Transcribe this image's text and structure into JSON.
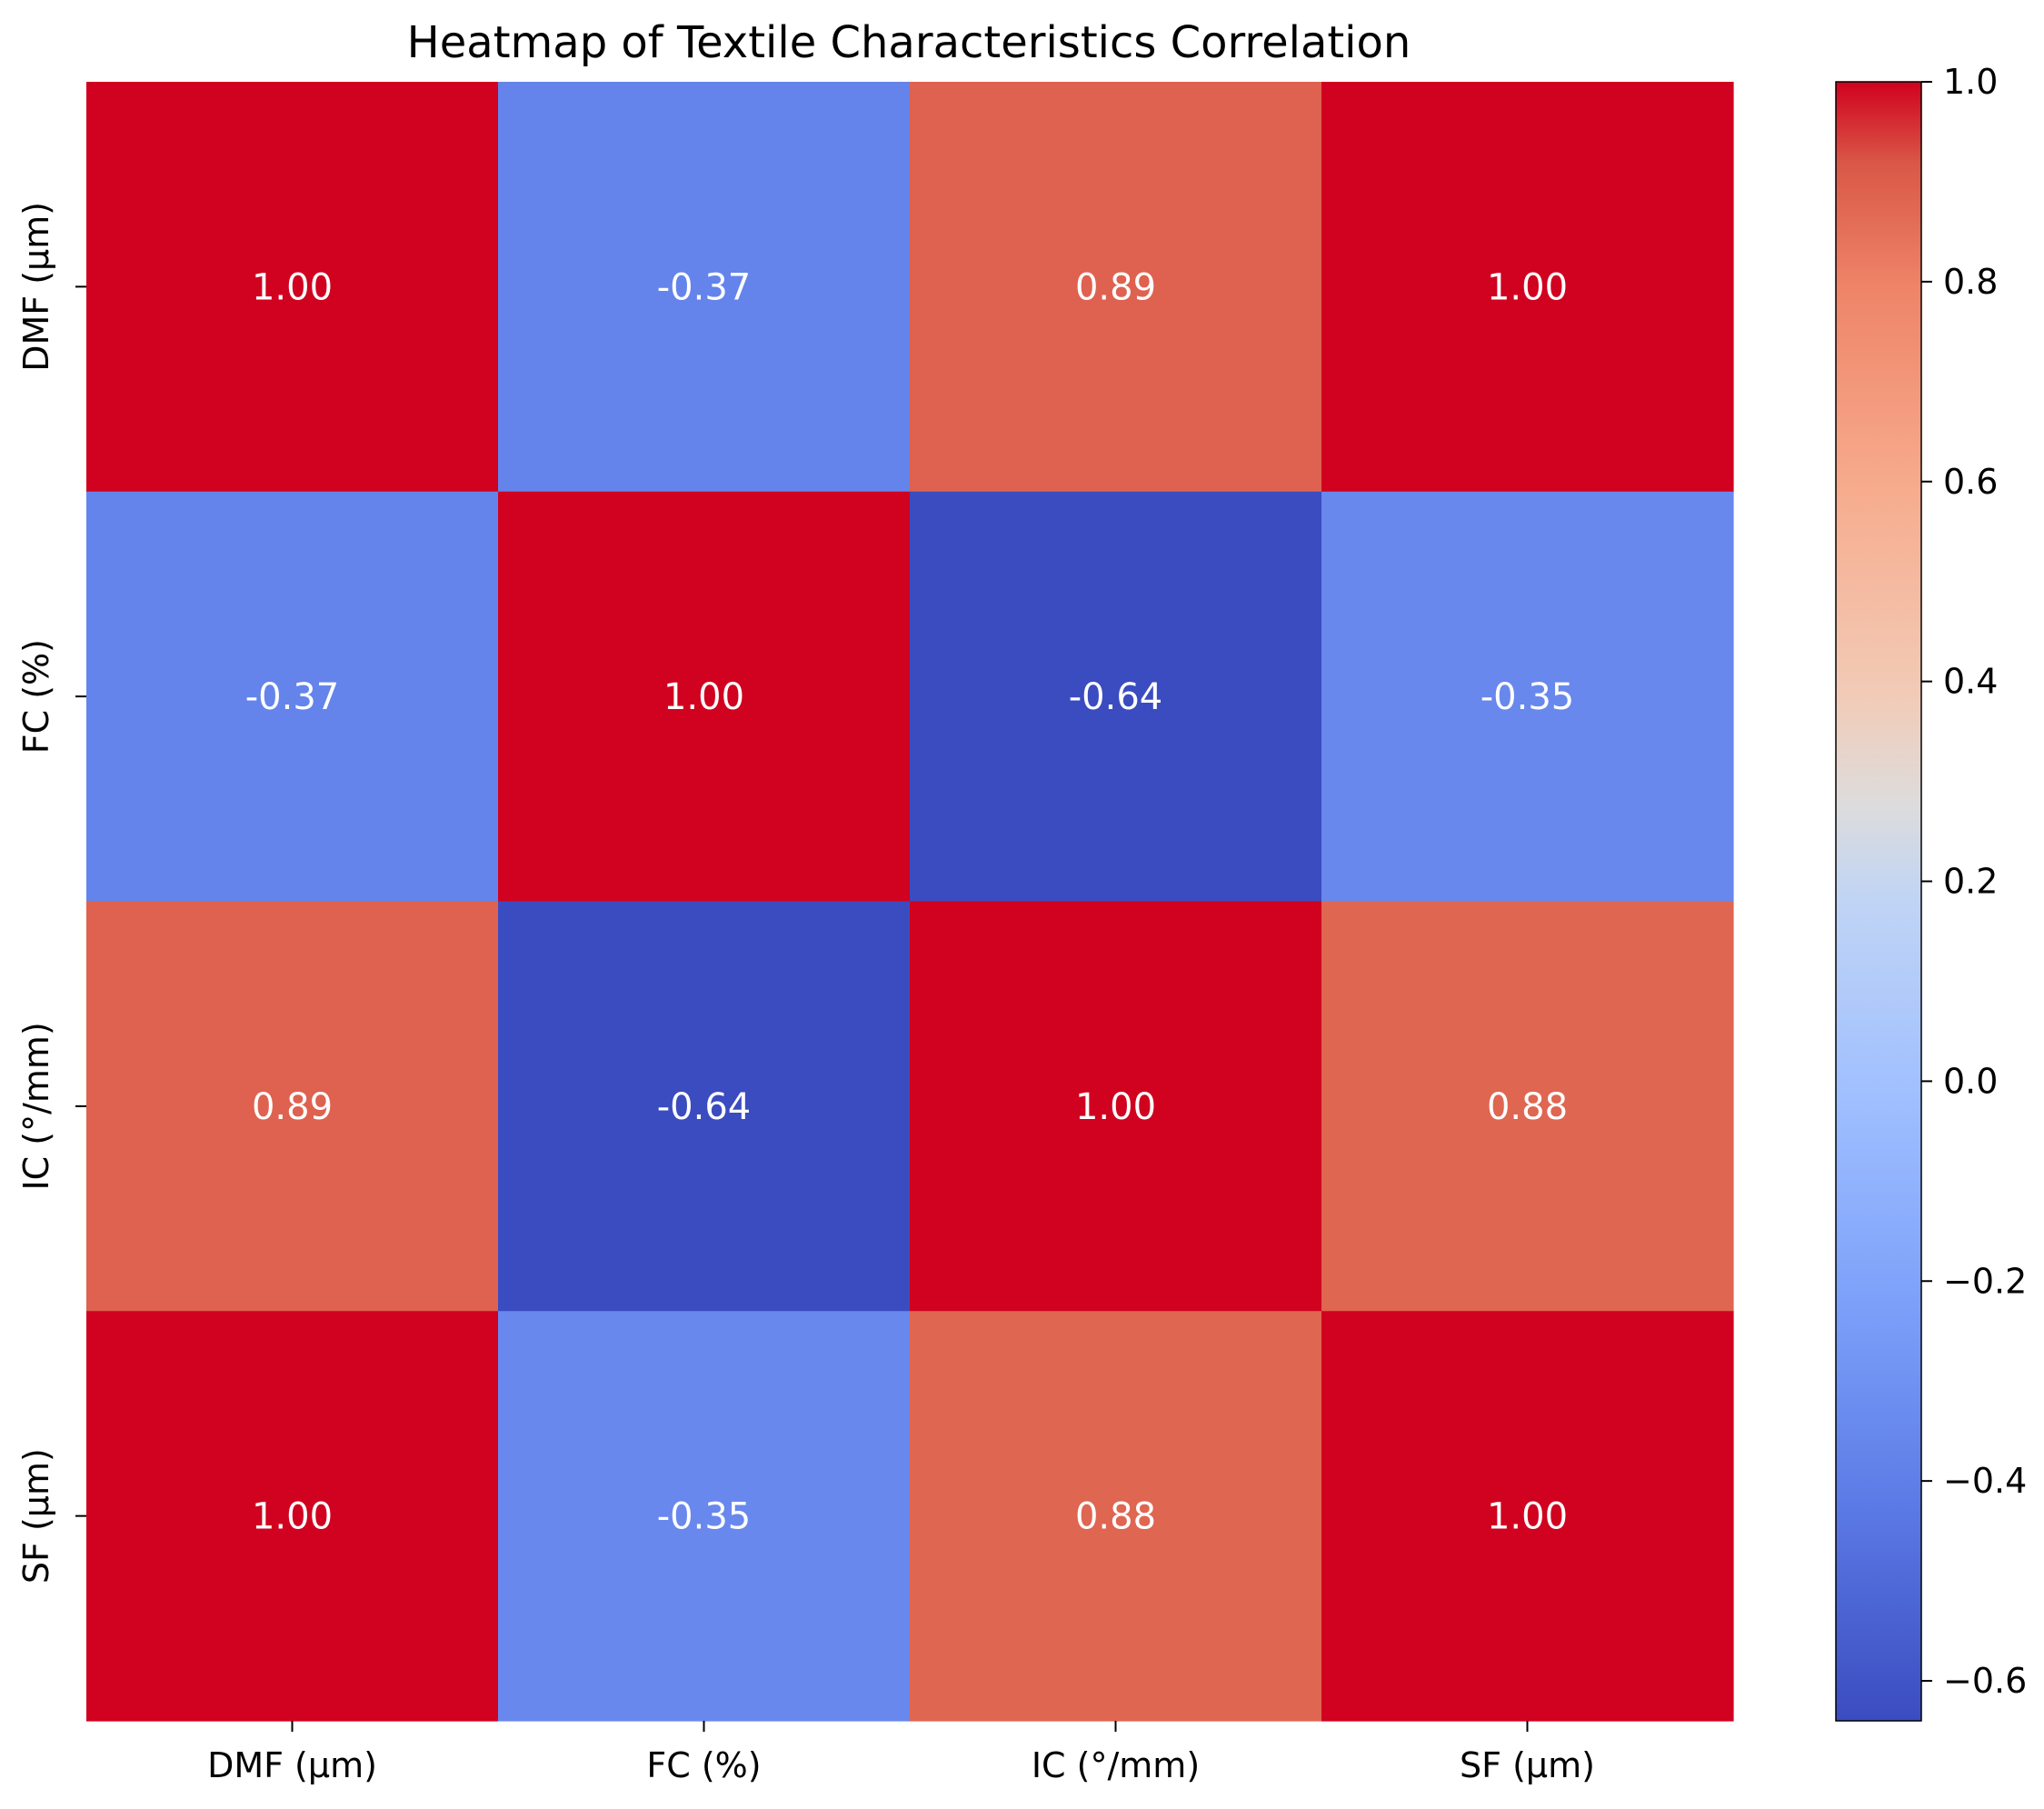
{
  "chart_data": {
    "type": "heatmap",
    "title": "Heatmap of Textile Characteristics Correlation",
    "xlabel": "",
    "ylabel": "",
    "row_labels": [
      "DMF (µm)",
      "FC (%)",
      "IC (°/mm)",
      "SF (µm)"
    ],
    "col_labels": [
      "DMF (µm)",
      "FC (%)",
      "IC (°/mm)",
      "SF (µm)"
    ],
    "values": [
      [
        1.0,
        -0.37,
        0.89,
        1.0
      ],
      [
        -0.37,
        1.0,
        -0.64,
        -0.35
      ],
      [
        0.89,
        -0.64,
        1.0,
        0.88
      ],
      [
        1.0,
        -0.35,
        0.88,
        1.0
      ]
    ],
    "cell_labels": [
      [
        "1.00",
        "-0.37",
        "0.89",
        "1.00"
      ],
      [
        "-0.37",
        "1.00",
        "-0.64",
        "-0.35"
      ],
      [
        "0.89",
        "-0.64",
        "1.00",
        "0.88"
      ],
      [
        "1.00",
        "-0.35",
        "0.88",
        "1.00"
      ]
    ],
    "colormap": "coolwarm",
    "colorbar": {
      "vmin": -0.64,
      "vmax": 1.0,
      "ticks": [
        1.0,
        0.8,
        0.6,
        0.4,
        0.2,
        0.0,
        -0.2,
        -0.4,
        -0.6
      ],
      "tick_labels": [
        "1.0",
        "0.8",
        "0.6",
        "0.4",
        "0.2",
        "0.0",
        "−0.2",
        "−0.4",
        "−0.6"
      ]
    },
    "grid": false,
    "legend": "colorbar-right"
  }
}
